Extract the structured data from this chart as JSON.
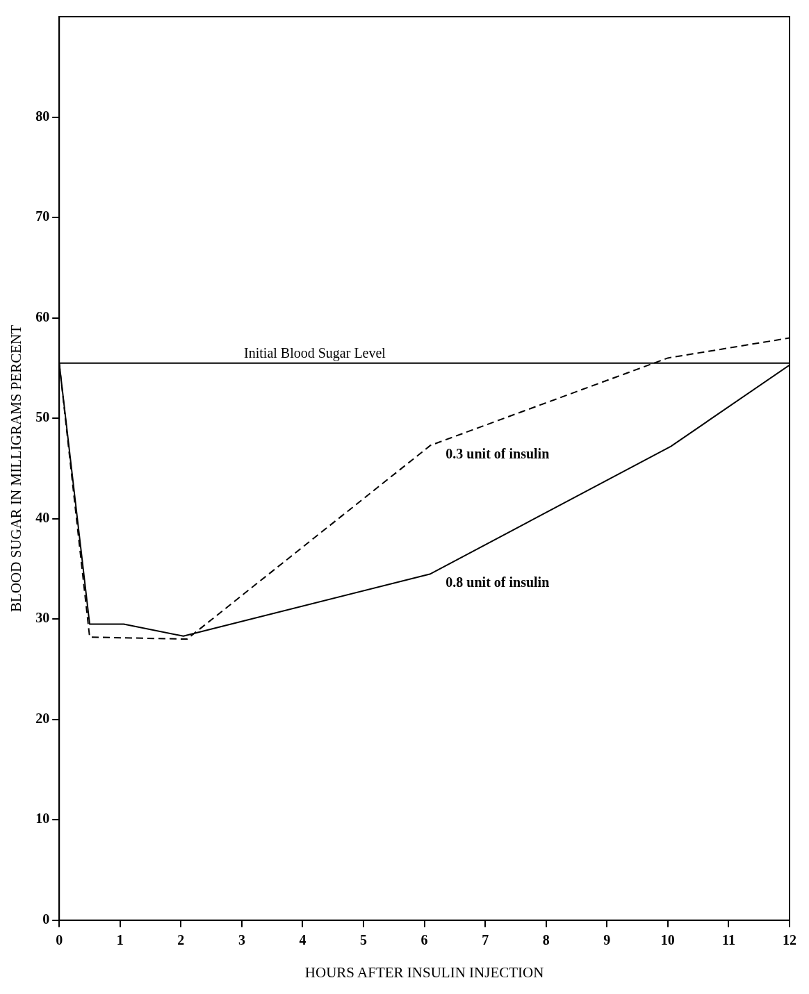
{
  "chart_data": {
    "type": "line",
    "xlabel": "HOURS AFTER INSULIN INJECTION",
    "ylabel": "BLOOD SUGAR IN MILLIGRAMS PERCENT",
    "xlim": [
      0,
      12
    ],
    "xticks": [
      0,
      1,
      2,
      3,
      4,
      5,
      6,
      7,
      8,
      9,
      10,
      11,
      12
    ],
    "ylim": [
      0,
      90
    ],
    "yticks": [
      0,
      10,
      20,
      30,
      40,
      50,
      60,
      70,
      80
    ],
    "grid": false,
    "legend": false,
    "marker": "none",
    "series": [
      {
        "name": "0.3 unit of insulin",
        "color": "#000000",
        "line_style": "dashed",
        "x": [
          0,
          0.5,
          2.1,
          6.1,
          10,
          12
        ],
        "values": [
          55.5,
          28.2,
          28,
          47.3,
          56,
          58
        ]
      },
      {
        "name": "0.8 unit of insulin",
        "color": "#000000",
        "line_style": "solid",
        "x": [
          0,
          0.5,
          1.06,
          2.04,
          6.1,
          10.05,
          12
        ],
        "values": [
          55.5,
          29.5,
          29.5,
          28.3,
          34.5,
          47.2,
          55.3
        ]
      }
    ],
    "ref_lines": [
      {
        "axis": "y",
        "value": 55.5,
        "label": "Initial Blood Sugar Level",
        "color": "#000000",
        "line_style": "solid"
      }
    ]
  }
}
